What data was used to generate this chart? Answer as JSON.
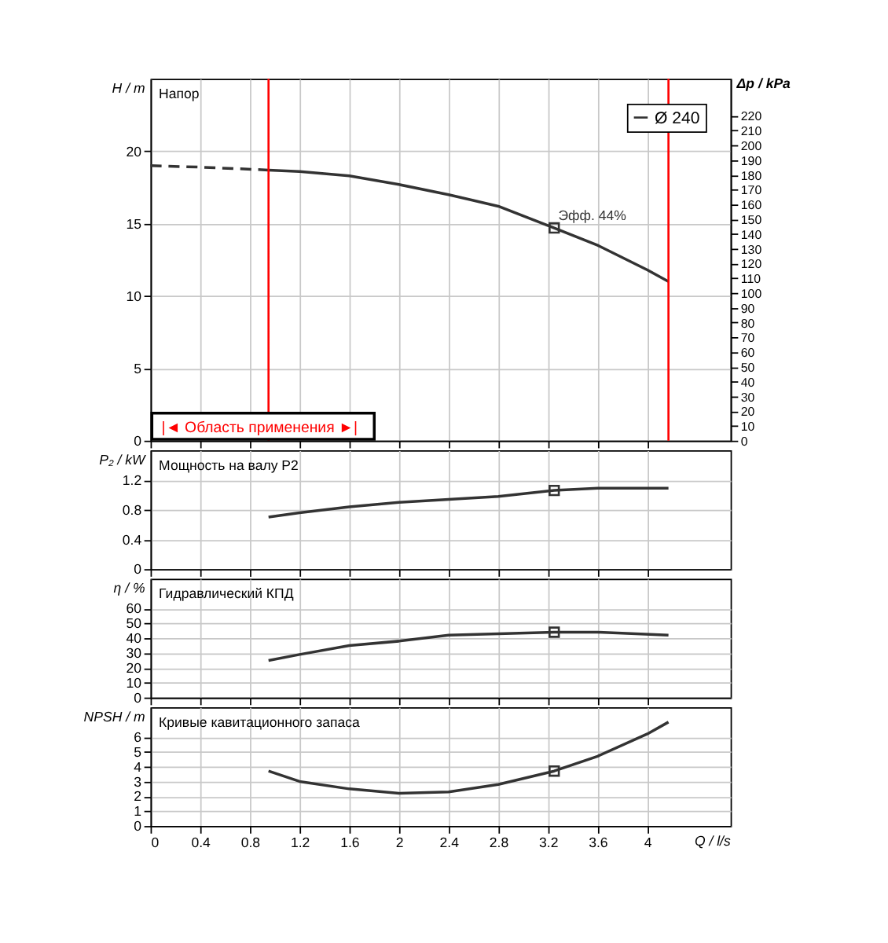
{
  "chart_data": [
    {
      "type": "line",
      "title": "Напор",
      "ylabel": "H / m",
      "y2label": "Δp / kPa",
      "xlim": [
        0,
        4.67
      ],
      "xticks": [
        0,
        0.4,
        0.8,
        1.2,
        1.6,
        2,
        2.4,
        2.8,
        3.2,
        3.6,
        4
      ],
      "ylim": [
        0,
        25
      ],
      "yticks": [
        0,
        5,
        10,
        15,
        20
      ],
      "y2lim": [
        0,
        245
      ],
      "y2ticks": [
        0,
        10,
        20,
        30,
        40,
        50,
        60,
        70,
        80,
        90,
        100,
        110,
        120,
        130,
        140,
        150,
        160,
        170,
        180,
        190,
        200,
        210,
        220
      ],
      "grid": true,
      "tick_labels": "y",
      "legend": "top right",
      "series": [
        {
          "x": [
            0,
            0.4,
            0.95
          ],
          "values": [
            19.0,
            18.9,
            18.7
          ],
          "color": "#333333",
          "line_style": "dashed"
        },
        {
          "name": "Ø 240",
          "x": [
            0.95,
            1.2,
            1.6,
            2.0,
            2.4,
            2.8,
            3.25,
            3.6,
            4.0,
            4.17
          ],
          "values": [
            18.7,
            18.6,
            18.3,
            17.7,
            17.0,
            16.2,
            14.7,
            13.5,
            11.8,
            11.0
          ],
          "color": "#333333",
          "line_style": "solid"
        },
        {
          "type": "scatter",
          "marker": "square",
          "x": [
            3.25
          ],
          "values": [
            14.7
          ],
          "color": "#333333"
        }
      ],
      "ref_lines": [
        {
          "axis": "x",
          "value": 0.95,
          "color": "#ff0000"
        },
        {
          "axis": "x",
          "value": 4.17,
          "color": "#ff0000"
        }
      ],
      "annotations": [
        {
          "text": "Эфф. 44%",
          "x": 3.25,
          "y": 14.7
        },
        "|◄ Область применения ►|"
      ]
    },
    {
      "type": "line",
      "title": "Мощность на валу P2",
      "ylabel": "P₂ / kW",
      "xlim": [
        0,
        4.67
      ],
      "xticks": [
        0,
        0.4,
        0.8,
        1.2,
        1.6,
        2,
        2.4,
        2.8,
        3.2,
        3.6,
        4
      ],
      "ylim": [
        0,
        1.6
      ],
      "yticks": [
        0,
        0.4,
        0.8,
        1.2
      ],
      "grid": true,
      "tick_labels": "y",
      "series": [
        {
          "x": [
            0.95,
            1.2,
            1.6,
            2.0,
            2.4,
            2.8,
            3.25,
            3.6,
            4.17
          ],
          "values": [
            0.7,
            0.76,
            0.84,
            0.9,
            0.94,
            0.98,
            1.06,
            1.09,
            1.09
          ],
          "color": "#333333"
        },
        {
          "type": "scatter",
          "marker": "square",
          "x": [
            3.25
          ],
          "values": [
            1.06
          ],
          "color": "#333333"
        }
      ]
    },
    {
      "type": "line",
      "title": "Гидравлический КПД",
      "ylabel": "η / %",
      "xlim": [
        0,
        4.67
      ],
      "xticks": [
        0,
        0.4,
        0.8,
        1.2,
        1.6,
        2,
        2.4,
        2.8,
        3.2,
        3.6,
        4
      ],
      "ylim": [
        0,
        80
      ],
      "yticks": [
        0,
        10,
        20,
        30,
        40,
        50,
        60
      ],
      "grid": true,
      "tick_labels": "y",
      "series": [
        {
          "x": [
            0.95,
            1.2,
            1.6,
            2.0,
            2.4,
            2.8,
            3.25,
            3.6,
            4.17
          ],
          "values": [
            25,
            29,
            35,
            38,
            42,
            43,
            44,
            44,
            42
          ],
          "color": "#333333"
        },
        {
          "type": "scatter",
          "marker": "square",
          "x": [
            3.25
          ],
          "values": [
            44
          ],
          "color": "#333333"
        }
      ]
    },
    {
      "type": "line",
      "title": "Кривые кавитационного запаса",
      "ylabel": "NPSH / m",
      "xlabel": "Q / l/s",
      "xlim": [
        0,
        4.67
      ],
      "xticks": [
        0,
        0.4,
        0.8,
        1.2,
        1.6,
        2,
        2.4,
        2.8,
        3.2,
        3.6,
        4
      ],
      "ylim": [
        0,
        8
      ],
      "yticks": [
        0,
        1,
        2,
        3,
        4,
        5,
        6
      ],
      "grid": true,
      "series": [
        {
          "x": [
            0.95,
            1.2,
            1.6,
            2.0,
            2.4,
            2.8,
            3.25,
            3.6,
            4.0,
            4.17
          ],
          "values": [
            3.7,
            3.0,
            2.5,
            2.2,
            2.3,
            2.8,
            3.7,
            4.7,
            6.2,
            7.0
          ],
          "color": "#333333"
        },
        {
          "type": "scatter",
          "marker": "square",
          "x": [
            3.25
          ],
          "values": [
            3.7
          ],
          "color": "#333333"
        }
      ]
    }
  ]
}
